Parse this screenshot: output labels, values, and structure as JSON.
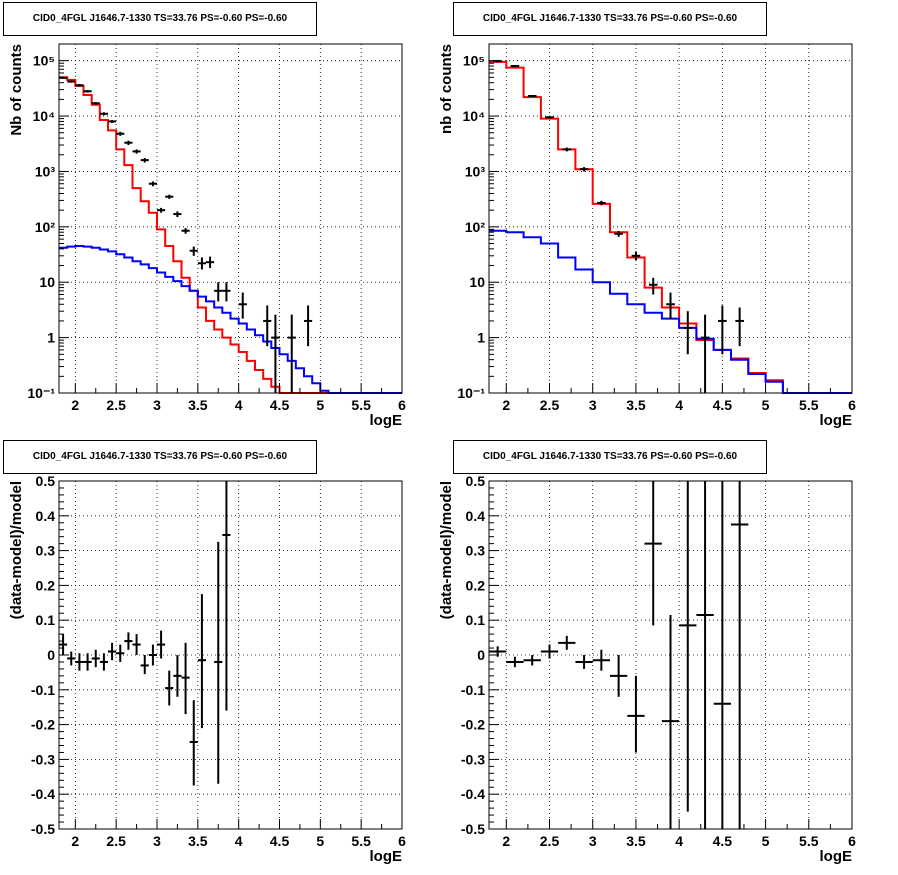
{
  "panels": [
    {
      "id": "top-left",
      "title": "CID0_4FGL J1646.7-1330 TS=33.76 PS=-0.60 PS=-0.60",
      "xlabel": "logE",
      "ylabel": "Nb of counts"
    },
    {
      "id": "top-right",
      "title": "CID0_4FGL J1646.7-1330 TS=33.76 PS=-0.60 PS=-0.60",
      "xlabel": "logE",
      "ylabel": "nb of counts"
    },
    {
      "id": "bottom-left",
      "title": "CID0_4FGL J1646.7-1330 TS=33.76 PS=-0.60 PS=-0.60",
      "xlabel": "logE",
      "ylabel": "(data-model)/model"
    },
    {
      "id": "bottom-right",
      "title": "CID0_4FGL J1646.7-1330 TS=33.76 PS=-0.60 PS=-0.60",
      "xlabel": "logE",
      "ylabel": "(data-model)/model"
    }
  ],
  "colors": {
    "model_total": "#ff0000",
    "model_background": "#0000ff",
    "data": "#000000",
    "grid": "#000000"
  },
  "chart_data": [
    {
      "type": "line",
      "title": "CID0_4FGL J1646.7-1330 TS=33.76 PS=-0.60 PS=-0.60",
      "xlabel": "logE",
      "ylabel": "Nb of counts",
      "xlim": [
        1.8,
        6
      ],
      "ylim": [
        0.1,
        200000
      ],
      "yscale": "log",
      "xticks": [
        2,
        2.5,
        3,
        3.5,
        4,
        4.5,
        5,
        5.5,
        6
      ],
      "yticks": [
        {
          "v": 0.1,
          "label": "10⁻¹"
        },
        {
          "v": 1,
          "label": "1"
        },
        {
          "v": 10,
          "label": "10"
        },
        {
          "v": 100,
          "label": "10²"
        },
        {
          "v": 1000,
          "label": "10³"
        },
        {
          "v": 10000,
          "label": "10⁴"
        },
        {
          "v": 100000,
          "label": "10⁵"
        }
      ],
      "grid": true,
      "bin_edges": [
        1.8,
        1.9,
        2.0,
        2.1,
        2.2,
        2.3,
        2.4,
        2.5,
        2.6,
        2.7,
        2.8,
        2.9,
        3.0,
        3.1,
        3.2,
        3.3,
        3.4,
        3.5,
        3.6,
        3.7,
        3.8,
        3.9,
        4.0,
        4.1,
        4.2,
        4.3,
        4.4,
        4.5,
        4.6,
        4.7,
        4.8,
        4.9,
        5.0,
        5.1,
        5.2,
        5.3,
        5.4,
        5.5,
        5.6,
        5.7,
        5.8,
        5.9,
        6.0
      ],
      "series": [
        {
          "type": "step",
          "color": "#ff0000",
          "values": [
            50000,
            45000,
            35000,
            24000,
            16000,
            8500,
            5500,
            2500,
            1300,
            500,
            290,
            180,
            90,
            45,
            24,
            12,
            7,
            3.5,
            2.0,
            1.4,
            1.0,
            0.75,
            0.55,
            0.38,
            0.26,
            0.18,
            0.13,
            0.1,
            0.08,
            0.1,
            0.1,
            0.1,
            0.1,
            0.1,
            0.1,
            0.1,
            0.1,
            0.1,
            0.1,
            0.1,
            0.1,
            0.1
          ]
        },
        {
          "type": "step",
          "color": "#0000ff",
          "values": [
            42,
            44,
            45,
            44,
            42,
            39,
            36,
            32,
            28,
            24,
            21,
            18,
            15,
            12.5,
            10.5,
            8.5,
            7,
            5.5,
            4.5,
            3.5,
            2.8,
            2.2,
            1.8,
            1.4,
            1.1,
            0.85,
            0.65,
            0.5,
            0.38,
            0.28,
            0.2,
            0.15,
            0.11,
            0.08,
            0.1,
            0.1,
            0.1,
            0.1,
            0.1,
            0.1,
            0.1,
            0.1
          ]
        },
        {
          "type": "points",
          "color": "#000000",
          "points": [
            {
              "x": 1.85,
              "y": 49000,
              "lo": 47000,
              "hi": 51000
            },
            {
              "x": 1.95,
              "y": 42000,
              "lo": 40000,
              "hi": 44000
            },
            {
              "x": 2.05,
              "y": 36000,
              "lo": 34000,
              "hi": 38000
            },
            {
              "x": 2.15,
              "y": 28000,
              "lo": 26500,
              "hi": 29500
            },
            {
              "x": 2.25,
              "y": 17000,
              "lo": 16000,
              "hi": 18000
            },
            {
              "x": 2.35,
              "y": 11000,
              "lo": 10300,
              "hi": 11700
            },
            {
              "x": 2.45,
              "y": 8000,
              "lo": 7500,
              "hi": 8500
            },
            {
              "x": 2.55,
              "y": 4800,
              "lo": 4400,
              "hi": 5200
            },
            {
              "x": 2.65,
              "y": 3300,
              "lo": 3000,
              "hi": 3600
            },
            {
              "x": 2.75,
              "y": 2300,
              "lo": 2100,
              "hi": 2500
            },
            {
              "x": 2.85,
              "y": 1600,
              "lo": 1450,
              "hi": 1750
            },
            {
              "x": 2.95,
              "y": 600,
              "lo": 540,
              "hi": 660
            },
            {
              "x": 3.05,
              "y": 200,
              "lo": 180,
              "hi": 220
            },
            {
              "x": 3.15,
              "y": 350,
              "lo": 320,
              "hi": 380
            },
            {
              "x": 3.25,
              "y": 170,
              "lo": 150,
              "hi": 190
            },
            {
              "x": 3.35,
              "y": 85,
              "lo": 75,
              "hi": 95
            },
            {
              "x": 3.45,
              "y": 37,
              "lo": 30,
              "hi": 44
            },
            {
              "x": 3.55,
              "y": 22,
              "lo": 17,
              "hi": 28
            },
            {
              "x": 3.65,
              "y": 23,
              "lo": 18,
              "hi": 29
            },
            {
              "x": 3.75,
              "y": 7,
              "lo": 4.5,
              "hi": 10
            },
            {
              "x": 3.85,
              "y": 7,
              "lo": 4.5,
              "hi": 10
            },
            {
              "x": 4.05,
              "y": 4,
              "lo": 2.2,
              "hi": 6.5
            },
            {
              "x": 4.35,
              "y": 2,
              "lo": 0.7,
              "hi": 3.8
            },
            {
              "x": 4.45,
              "y": 1,
              "lo": 0.1,
              "hi": 2.6
            },
            {
              "x": 4.65,
              "y": 1,
              "lo": 0.1,
              "hi": 2.6
            },
            {
              "x": 4.85,
              "y": 2,
              "lo": 0.7,
              "hi": 3.8
            }
          ]
        }
      ]
    },
    {
      "type": "line",
      "title": "CID0_4FGL J1646.7-1330 TS=33.76 PS=-0.60 PS=-0.60",
      "xlabel": "logE",
      "ylabel": "nb of counts",
      "xlim": [
        1.8,
        6
      ],
      "ylim": [
        0.1,
        200000
      ],
      "yscale": "log",
      "xticks": [
        2,
        2.5,
        3,
        3.5,
        4,
        4.5,
        5,
        5.5,
        6
      ],
      "yticks": [
        {
          "v": 0.1,
          "label": "10⁻¹"
        },
        {
          "v": 1,
          "label": "1"
        },
        {
          "v": 10,
          "label": "10"
        },
        {
          "v": 100,
          "label": "10²"
        },
        {
          "v": 1000,
          "label": "10³"
        },
        {
          "v": 10000,
          "label": "10⁴"
        },
        {
          "v": 100000,
          "label": "10⁵"
        }
      ],
      "grid": true,
      "bin_edges": [
        1.8,
        2.0,
        2.2,
        2.4,
        2.6,
        2.8,
        3.0,
        3.2,
        3.4,
        3.6,
        3.8,
        4.0,
        4.2,
        4.4,
        4.6,
        4.8,
        5.0,
        5.2,
        5.4,
        5.6,
        5.8,
        6.0
      ],
      "series": [
        {
          "type": "step",
          "color": "#ff0000",
          "values": [
            95000,
            75000,
            22000,
            9000,
            2500,
            1100,
            260,
            80,
            28,
            8,
            3.5,
            1.8,
            0.9,
            0.6,
            0.42,
            0.23,
            0.17,
            0.1,
            0.1,
            0.1,
            0.1
          ]
        },
        {
          "type": "step",
          "color": "#0000ff",
          "values": [
            85,
            80,
            65,
            50,
            28,
            17,
            10,
            6.2,
            4,
            2.8,
            2.2,
            1.5,
            0.95,
            0.6,
            0.4,
            0.22,
            0.16,
            0.1,
            0.1,
            0.1,
            0.1
          ]
        },
        {
          "type": "points",
          "color": "#000000",
          "points": [
            {
              "x": 1.9,
              "y": 98000,
              "lo": 95000,
              "hi": 101000
            },
            {
              "x": 2.1,
              "y": 80000,
              "lo": 77000,
              "hi": 83000
            },
            {
              "x": 2.3,
              "y": 23000,
              "lo": 22000,
              "hi": 24000
            },
            {
              "x": 2.5,
              "y": 9500,
              "lo": 9000,
              "hi": 10000
            },
            {
              "x": 2.7,
              "y": 2500,
              "lo": 2300,
              "hi": 2700
            },
            {
              "x": 2.9,
              "y": 1100,
              "lo": 1000,
              "hi": 1200
            },
            {
              "x": 3.1,
              "y": 270,
              "lo": 245,
              "hi": 295
            },
            {
              "x": 3.3,
              "y": 75,
              "lo": 66,
              "hi": 84
            },
            {
              "x": 3.5,
              "y": 30,
              "lo": 25,
              "hi": 36
            },
            {
              "x": 3.7,
              "y": 9,
              "lo": 6,
              "hi": 12
            },
            {
              "x": 3.9,
              "y": 4,
              "lo": 2.2,
              "hi": 6.5
            },
            {
              "x": 4.1,
              "y": 1.5,
              "lo": 0.5,
              "hi": 3
            },
            {
              "x": 4.3,
              "y": 1,
              "lo": 0.1,
              "hi": 2.6
            },
            {
              "x": 4.5,
              "y": 2,
              "lo": 0.5,
              "hi": 3.8
            },
            {
              "x": 4.7,
              "y": 2,
              "lo": 0.7,
              "hi": 3.5
            }
          ]
        }
      ]
    },
    {
      "type": "scatter",
      "title": "CID0_4FGL J1646.7-1330 TS=33.76 PS=-0.60 PS=-0.60",
      "xlabel": "logE",
      "ylabel": "(data-model)/model",
      "xlim": [
        1.8,
        6
      ],
      "ylim": [
        -0.5,
        0.5
      ],
      "xticks": [
        2,
        2.5,
        3,
        3.5,
        4,
        4.5,
        5,
        5.5,
        6
      ],
      "yticks": [
        {
          "v": -0.5,
          "label": "-0.5"
        },
        {
          "v": -0.4,
          "label": "-0.4"
        },
        {
          "v": -0.3,
          "label": "-0.3"
        },
        {
          "v": -0.2,
          "label": "-0.2"
        },
        {
          "v": -0.1,
          "label": "-0.1"
        },
        {
          "v": 0,
          "label": "0"
        },
        {
          "v": 0.1,
          "label": "0.1"
        },
        {
          "v": 0.2,
          "label": "0.2"
        },
        {
          "v": 0.3,
          "label": "0.3"
        },
        {
          "v": 0.4,
          "label": "0.4"
        },
        {
          "v": 0.5,
          "label": "0.5"
        }
      ],
      "grid": true,
      "series": [
        {
          "type": "points",
          "color": "#000000",
          "halfwidth": 0.05,
          "points": [
            {
              "x": 1.85,
              "y": 0.03,
              "lo": 0.0,
              "hi": 0.06
            },
            {
              "x": 1.95,
              "y": -0.01,
              "lo": -0.03,
              "hi": 0.01
            },
            {
              "x": 2.05,
              "y": -0.02,
              "lo": -0.045,
              "hi": 0.005
            },
            {
              "x": 2.15,
              "y": -0.02,
              "lo": -0.045,
              "hi": 0.005
            },
            {
              "x": 2.25,
              "y": -0.01,
              "lo": -0.035,
              "hi": 0.015
            },
            {
              "x": 2.35,
              "y": -0.02,
              "lo": -0.045,
              "hi": 0.005
            },
            {
              "x": 2.45,
              "y": 0.01,
              "lo": -0.015,
              "hi": 0.035
            },
            {
              "x": 2.55,
              "y": 0.005,
              "lo": -0.02,
              "hi": 0.03
            },
            {
              "x": 2.65,
              "y": 0.04,
              "lo": 0.015,
              "hi": 0.065
            },
            {
              "x": 2.75,
              "y": 0.03,
              "lo": 0.0,
              "hi": 0.06
            },
            {
              "x": 2.85,
              "y": -0.03,
              "lo": -0.055,
              "hi": 0.0
            },
            {
              "x": 2.95,
              "y": 0.0,
              "lo": -0.03,
              "hi": 0.03
            },
            {
              "x": 3.05,
              "y": 0.03,
              "lo": -0.01,
              "hi": 0.07
            },
            {
              "x": 3.15,
              "y": -0.095,
              "lo": -0.145,
              "hi": -0.045
            },
            {
              "x": 3.25,
              "y": -0.06,
              "lo": -0.12,
              "hi": 0.0
            },
            {
              "x": 3.35,
              "y": -0.065,
              "lo": -0.17,
              "hi": 0.035
            },
            {
              "x": 3.45,
              "y": -0.25,
              "lo": -0.375,
              "hi": -0.13
            },
            {
              "x": 3.55,
              "y": -0.015,
              "lo": -0.21,
              "hi": 0.175
            },
            {
              "x": 3.75,
              "y": -0.02,
              "lo": -0.37,
              "hi": 0.325
            },
            {
              "x": 3.85,
              "y": 0.345,
              "lo": -0.16,
              "hi": 0.5
            }
          ]
        }
      ]
    },
    {
      "type": "scatter",
      "title": "CID0_4FGL J1646.7-1330 TS=33.76 PS=-0.60 PS=-0.60",
      "xlabel": "logE",
      "ylabel": "(data-model)/model",
      "xlim": [
        1.8,
        6
      ],
      "ylim": [
        -0.5,
        0.5
      ],
      "xticks": [
        2,
        2.5,
        3,
        3.5,
        4,
        4.5,
        5,
        5.5,
        6
      ],
      "yticks": [
        {
          "v": -0.5,
          "label": "-0.5"
        },
        {
          "v": -0.4,
          "label": "-0.4"
        },
        {
          "v": -0.3,
          "label": "-0.3"
        },
        {
          "v": -0.2,
          "label": "-0.2"
        },
        {
          "v": -0.1,
          "label": "-0.1"
        },
        {
          "v": 0,
          "label": "0"
        },
        {
          "v": 0.1,
          "label": "0.1"
        },
        {
          "v": 0.2,
          "label": "0.2"
        },
        {
          "v": 0.3,
          "label": "0.3"
        },
        {
          "v": 0.4,
          "label": "0.4"
        },
        {
          "v": 0.5,
          "label": "0.5"
        }
      ],
      "grid": true,
      "series": [
        {
          "type": "points",
          "color": "#000000",
          "halfwidth": 0.1,
          "points": [
            {
              "x": 1.9,
              "y": 0.01,
              "lo": -0.005,
              "hi": 0.025
            },
            {
              "x": 2.1,
              "y": -0.02,
              "lo": -0.035,
              "hi": -0.005
            },
            {
              "x": 2.3,
              "y": -0.015,
              "lo": -0.03,
              "hi": 0.0
            },
            {
              "x": 2.5,
              "y": 0.01,
              "lo": -0.01,
              "hi": 0.03
            },
            {
              "x": 2.7,
              "y": 0.035,
              "lo": 0.015,
              "hi": 0.055
            },
            {
              "x": 2.9,
              "y": -0.02,
              "lo": -0.04,
              "hi": 0.0
            },
            {
              "x": 3.1,
              "y": -0.015,
              "lo": -0.045,
              "hi": 0.015
            },
            {
              "x": 3.3,
              "y": -0.06,
              "lo": -0.12,
              "hi": 0.0
            },
            {
              "x": 3.5,
              "y": -0.175,
              "lo": -0.28,
              "hi": -0.06
            },
            {
              "x": 3.7,
              "y": 0.32,
              "lo": 0.085,
              "hi": 0.5
            },
            {
              "x": 3.9,
              "y": -0.19,
              "lo": -0.5,
              "hi": 0.115
            },
            {
              "x": 4.1,
              "y": 0.085,
              "lo": -0.45,
              "hi": 0.5
            },
            {
              "x": 4.3,
              "y": 0.115,
              "lo": -0.5,
              "hi": 0.5
            },
            {
              "x": 4.5,
              "y": -0.14,
              "lo": -0.5,
              "hi": 0.5
            },
            {
              "x": 4.7,
              "y": 0.375,
              "lo": -0.5,
              "hi": 0.5
            }
          ]
        }
      ]
    }
  ]
}
